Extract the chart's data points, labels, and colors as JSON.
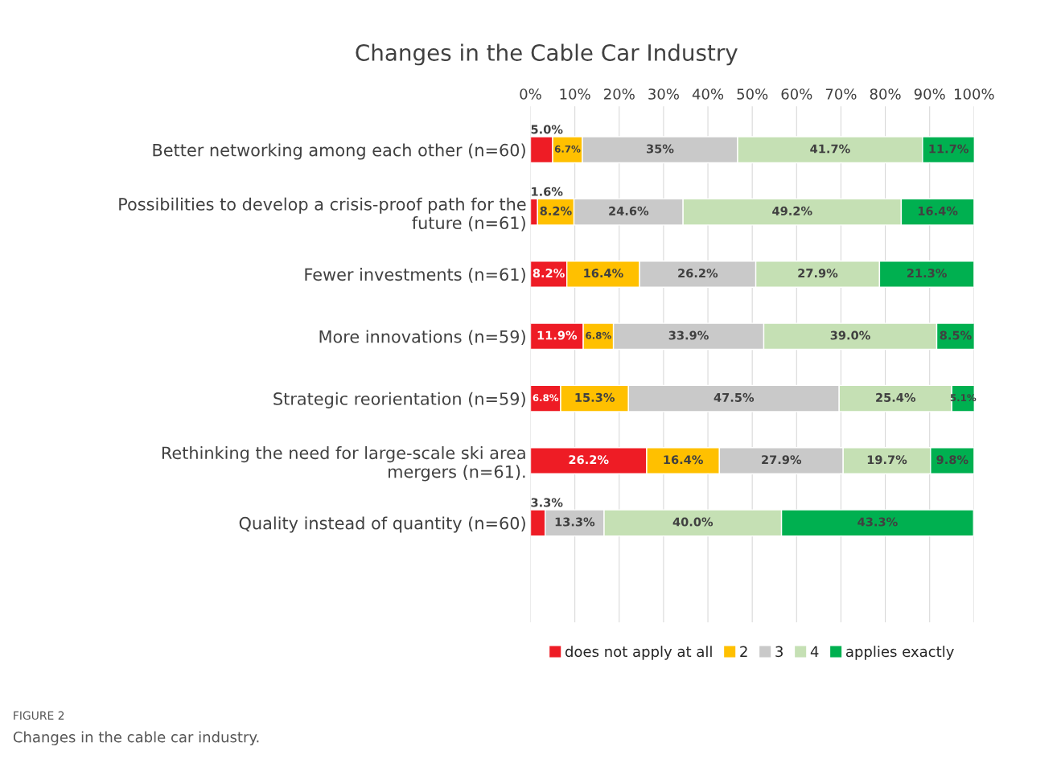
{
  "chart_data": {
    "type": "bar",
    "orientation": "horizontal",
    "stacked": true,
    "title": "Changes in the Cable Car Industry",
    "categories": [
      "Better networking among each other (n=60)",
      "Possibilities to develop a crisis-proof path for the\nfuture (n=61)",
      "Fewer investments (n=61)",
      "More innovations (n=59)",
      "Strategic reorientation (n=59)",
      "Rethinking the need for large-scale ski area\nmergers (n=61).",
      "Quality instead of quantity (n=60)"
    ],
    "series": [
      {
        "name": "does not apply at all",
        "color": "#ee1c25",
        "values": [
          5.0,
          1.6,
          8.2,
          11.9,
          6.8,
          26.2,
          3.3
        ],
        "value_labels": [
          "5.0%",
          "1.6%",
          "8.2%",
          "11.9%",
          "6.8%",
          "26.2%",
          "3.3%"
        ]
      },
      {
        "name": "2",
        "color": "#ffc000",
        "values": [
          6.7,
          8.2,
          16.4,
          6.8,
          15.3,
          16.4,
          0
        ],
        "value_labels": [
          "6.7%",
          "8.2%",
          "16.4%",
          "6.8%",
          "15.3%",
          "16.4%",
          null
        ]
      },
      {
        "name": "3",
        "color": "#c9c9c9",
        "values": [
          35,
          24.6,
          26.2,
          33.9,
          47.5,
          27.9,
          13.3
        ],
        "value_labels": [
          "35%",
          "24.6%",
          "26.2%",
          "33.9%",
          "47.5%",
          "27.9%",
          "13.3%"
        ]
      },
      {
        "name": "4",
        "color": "#c5e0b4",
        "values": [
          41.7,
          49.2,
          27.9,
          39.0,
          25.4,
          19.7,
          40.0
        ],
        "value_labels": [
          "41.7%",
          "49.2%",
          "27.9%",
          "39.0%",
          "25.4%",
          "19.7%",
          "40.0%"
        ]
      },
      {
        "name": "applies exactly",
        "color": "#00b050",
        "values": [
          11.7,
          16.4,
          21.3,
          8.5,
          5.1,
          9.8,
          43.3
        ],
        "value_labels": [
          "11.7%",
          "16.4%",
          "21.3%",
          "8.5%",
          "5.1%",
          "9.8%",
          "43.3%"
        ]
      }
    ],
    "xlim": [
      0,
      100
    ],
    "xticks": [
      {
        "value": 0,
        "label": "0%"
      },
      {
        "value": 10,
        "label": "10%"
      },
      {
        "value": 20,
        "label": "20%"
      },
      {
        "value": 30,
        "label": "30%"
      },
      {
        "value": 40,
        "label": "40%"
      },
      {
        "value": 50,
        "label": "50%"
      },
      {
        "value": 60,
        "label": "60%"
      },
      {
        "value": 70,
        "label": "70%"
      },
      {
        "value": 80,
        "label": "80%"
      },
      {
        "value": 90,
        "label": "90%"
      },
      {
        "value": 100,
        "label": "100%"
      }
    ],
    "grid": "x",
    "legend": "bottom",
    "annotations": [
      "FIGURE 2",
      "Changes in the cable car industry."
    ]
  }
}
